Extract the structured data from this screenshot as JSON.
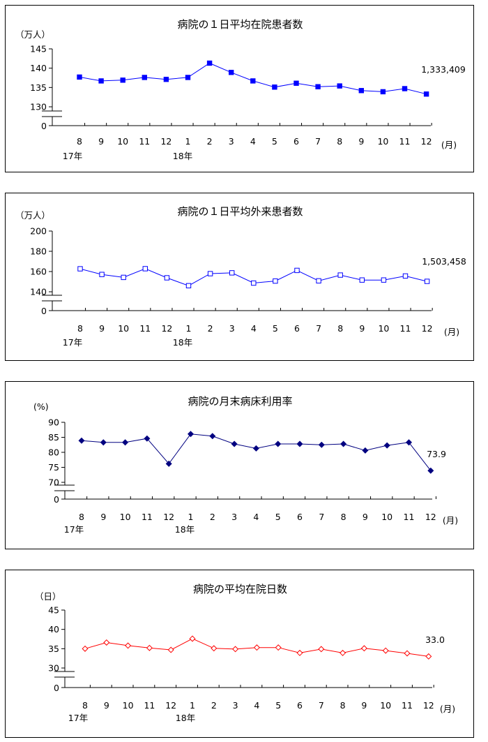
{
  "charts": [
    {
      "type": "line",
      "title": "病院の１日平均在院患者数",
      "unit": "（万人）",
      "month_unit": "(月)",
      "ylim": [
        130,
        145
      ],
      "yticks": [
        145,
        140,
        135,
        130
      ],
      "zero_label": "0",
      "color": "#0000ff",
      "marker": "square-filled",
      "categories": [
        "8",
        "9",
        "10",
        "11",
        "12",
        "1",
        "2",
        "3",
        "4",
        "5",
        "6",
        "7",
        "8",
        "9",
        "10",
        "11",
        "12"
      ],
      "year_labels": [
        "17年",
        "18年"
      ],
      "values": [
        137.7,
        136.7,
        136.9,
        137.6,
        137.1,
        137.6,
        141.3,
        138.9,
        136.7,
        135.1,
        136.1,
        135.2,
        135.4,
        134.2,
        133.9,
        134.7,
        133.3
      ],
      "last_label": "1,333,409"
    },
    {
      "type": "line",
      "title": "病院の１日平均外来患者数",
      "unit": "（万人）",
      "month_unit": "(月)",
      "ylim": [
        140,
        200
      ],
      "yticks": [
        200,
        180,
        160,
        140
      ],
      "zero_label": "0",
      "color": "#0000ff",
      "marker": "square-open",
      "categories": [
        "8",
        "9",
        "10",
        "11",
        "12",
        "1",
        "2",
        "3",
        "4",
        "5",
        "6",
        "7",
        "8",
        "9",
        "10",
        "11",
        "12"
      ],
      "year_labels": [
        "17年",
        "18年"
      ],
      "values": [
        162.7,
        157.1,
        154.2,
        162.8,
        153.8,
        146,
        157.9,
        158.7,
        148.6,
        150.6,
        161.1,
        150.8,
        156.5,
        151.6,
        151.6,
        155.6,
        150.3
      ],
      "last_label": "1,503,458"
    },
    {
      "type": "line",
      "title": "病院の月末病床利用率",
      "unit": "(%)",
      "month_unit": "(月)",
      "ylim": [
        70,
        90
      ],
      "yticks": [
        90,
        85,
        80,
        75,
        70
      ],
      "zero_label": "0",
      "color": "#000080",
      "marker": "diamond-filled",
      "categories": [
        "8",
        "9",
        "10",
        "11",
        "12",
        "1",
        "2",
        "3",
        "4",
        "5",
        "6",
        "7",
        "8",
        "9",
        "10",
        "11",
        "12"
      ],
      "year_labels": [
        "17年",
        "18年"
      ],
      "values": [
        83.9,
        83.3,
        83.3,
        84.6,
        76.2,
        86.1,
        85.4,
        82.8,
        81.3,
        82.8,
        82.8,
        82.5,
        82.8,
        80.6,
        82.3,
        83.3,
        73.9
      ],
      "last_label": "73.9"
    },
    {
      "type": "line",
      "title": "病院の平均在院日数",
      "unit": "（日）",
      "month_unit": "(月)",
      "ylim": [
        30,
        45
      ],
      "yticks": [
        45,
        40,
        35,
        30
      ],
      "zero_label": "0",
      "color": "#ff0000",
      "marker": "diamond-open",
      "categories": [
        "8",
        "9",
        "10",
        "11",
        "12",
        "1",
        "2",
        "3",
        "4",
        "5",
        "6",
        "7",
        "8",
        "9",
        "10",
        "11",
        "12"
      ],
      "year_labels": [
        "17年",
        "18年"
      ],
      "values": [
        35,
        36.6,
        35.8,
        35.2,
        34.7,
        37.6,
        35.1,
        34.9,
        35.3,
        35.3,
        33.9,
        34.9,
        33.9,
        35.1,
        34.5,
        33.8,
        33
      ]
    }
  ]
}
